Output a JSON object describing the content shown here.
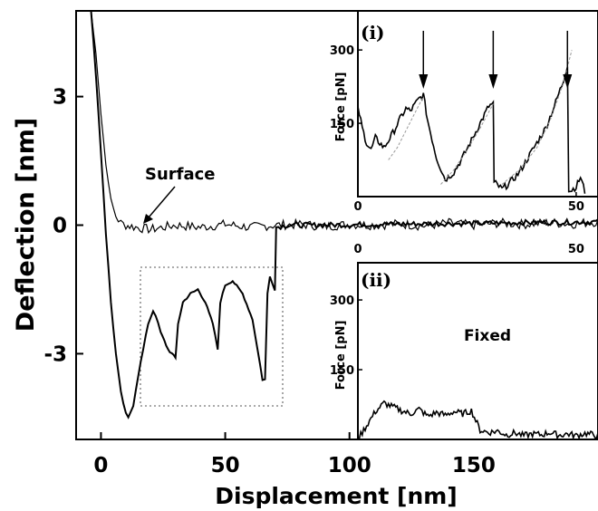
{
  "chart_data": [
    {
      "id": "main",
      "type": "line",
      "xlabel": "Displacement [nm]",
      "ylabel": "Deflection [nm]",
      "xlim": [
        -10,
        200
      ],
      "ylim": [
        -5,
        5
      ],
      "xticks": [
        0,
        50,
        100,
        150
      ],
      "yticks": [
        3,
        0,
        -3
      ],
      "annotations": [
        {
          "text": "Surface",
          "points_to": [
            18,
            -0.1
          ]
        }
      ],
      "series": [
        {
          "role": "approach",
          "x": [
            -4,
            -2,
            0,
            2,
            4,
            6,
            8,
            10,
            14,
            20,
            30,
            40,
            50,
            60,
            70,
            80,
            90,
            100,
            110,
            120,
            130,
            140,
            150,
            160,
            170,
            180,
            190,
            200
          ],
          "y": [
            5,
            4,
            2.6,
            1.4,
            0.6,
            0.2,
            0.05,
            0.0,
            -0.05,
            -0.1,
            0.0,
            -0.05,
            0.02,
            -0.05,
            0.0,
            0.02,
            -0.03,
            0.02,
            0.0,
            0.03,
            -0.02,
            0.05,
            0.0,
            0.05,
            0.02,
            0.06,
            0.03,
            0.08
          ]
        },
        {
          "role": "retract",
          "x": [
            -4,
            -2,
            0,
            2,
            4,
            6,
            8,
            10,
            11,
            13,
            15,
            17,
            19,
            21,
            22,
            24,
            27,
            30,
            31,
            33,
            36,
            39,
            42,
            45,
            47,
            48,
            50,
            53,
            57,
            61,
            63,
            65,
            66,
            67,
            68,
            69,
            70,
            70.5,
            75,
            90,
            110,
            130,
            150,
            170,
            190,
            200
          ],
          "y": [
            5,
            3.5,
            1.7,
            -0.2,
            -1.8,
            -3.0,
            -3.9,
            -4.4,
            -4.5,
            -4.2,
            -3.5,
            -2.9,
            -2.3,
            -2.0,
            -2.1,
            -2.5,
            -2.9,
            -3.1,
            -2.3,
            -1.8,
            -1.6,
            -1.5,
            -1.8,
            -2.3,
            -2.9,
            -1.8,
            -1.4,
            -1.3,
            -1.6,
            -2.2,
            -2.9,
            -3.6,
            -3.6,
            -1.6,
            -1.2,
            -1.35,
            -1.5,
            -0.05,
            0.0,
            0.0,
            0.02,
            0.03,
            0.04,
            0.06,
            0.07,
            0.08
          ]
        }
      ]
    },
    {
      "id": "inset-i",
      "type": "line",
      "panel_label": "(i)",
      "ylabel": "Force [pN]",
      "xlim": [
        0,
        55
      ],
      "ylim": [
        0,
        380
      ],
      "xticks": [
        0,
        50
      ],
      "yticks": [
        150,
        300
      ],
      "extra_xticks_below": [
        0,
        50
      ],
      "arrows_at_x": [
        15,
        31,
        48
      ],
      "series": [
        {
          "role": "force",
          "x": [
            0,
            1,
            2,
            3,
            4,
            6,
            8,
            10,
            11,
            12,
            14,
            15,
            16,
            18,
            20,
            22,
            24,
            26,
            28,
            30,
            31,
            31.2,
            33,
            35,
            37,
            39,
            41,
            43,
            45,
            47,
            48,
            48.3,
            50,
            51,
            52
          ],
          "y": [
            185,
            140,
            110,
            95,
            120,
            100,
            130,
            165,
            180,
            175,
            200,
            208,
            155,
            80,
            35,
            50,
            80,
            115,
            150,
            185,
            190,
            30,
            15,
            30,
            50,
            80,
            110,
            140,
            185,
            235,
            270,
            10,
            20,
            40,
            10
          ]
        },
        {
          "role": "wlc-fit-1",
          "x": [
            7,
            9,
            11,
            13,
            15
          ],
          "y": [
            75,
            100,
            135,
            170,
            205
          ]
        },
        {
          "role": "wlc-fit-2",
          "x": [
            19,
            22,
            25,
            28,
            31
          ],
          "y": [
            25,
            55,
            95,
            140,
            190
          ]
        },
        {
          "role": "wlc-fit-3",
          "x": [
            33,
            37,
            41,
            44,
            47,
            49
          ],
          "y": [
            25,
            55,
            100,
            155,
            230,
            300
          ]
        }
      ]
    },
    {
      "id": "inset-ii",
      "type": "line",
      "panel_label": "(ii)",
      "ylabel": "Force [pN]",
      "annotation": "Fixed",
      "xlim": [
        0,
        55
      ],
      "ylim": [
        0,
        380
      ],
      "yticks": [
        150,
        300
      ],
      "series": [
        {
          "role": "force",
          "x": [
            0,
            2,
            4,
            6,
            8,
            10,
            12,
            14,
            16,
            18,
            20,
            22,
            24,
            26,
            28,
            30,
            32,
            34,
            36,
            38,
            40,
            42,
            44,
            46,
            48,
            50,
            52,
            54,
            55
          ],
          "y": [
            0,
            30,
            60,
            78,
            70,
            62,
            55,
            65,
            50,
            58,
            52,
            60,
            55,
            62,
            20,
            15,
            18,
            10,
            14,
            8,
            12,
            10,
            15,
            9,
            12,
            8,
            13,
            10,
            8
          ]
        }
      ]
    }
  ]
}
